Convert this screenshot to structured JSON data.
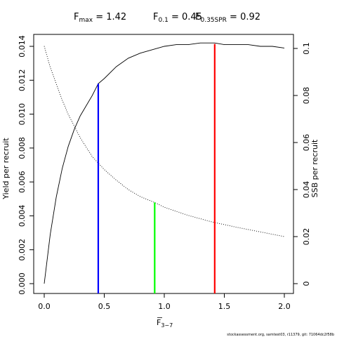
{
  "chart_data": {
    "type": "line",
    "title_parts": [
      {
        "main": "F",
        "sub": "max",
        "rest": " = 1.42"
      },
      {
        "main": "F",
        "sub": "0.1",
        "rest": " = 0.45"
      },
      {
        "main": "F",
        "sub": "0.35SPR",
        "rest": " = 0.92"
      }
    ],
    "xlabel": {
      "main": "F",
      "sub": "3−7"
    },
    "ylabel_left": "Yield per recruit",
    "ylabel_right": "SSB per recruit",
    "xlim": [
      0,
      2.0
    ],
    "ylim_left": [
      0,
      0.0145
    ],
    "ylim_right": [
      0,
      0.1036
    ],
    "x_ticks": [
      "0.0",
      "0.5",
      "1.0",
      "1.5",
      "2.0"
    ],
    "y_left_ticks": [
      "0.000",
      "0.002",
      "0.004",
      "0.006",
      "0.008",
      "0.010",
      "0.012",
      "0.014"
    ],
    "y_right_ticks": [
      "0",
      "0.02",
      "0.04",
      "0.06",
      "0.08",
      "0.1"
    ],
    "grid": false,
    "series": [
      {
        "axis": "left",
        "style": "solid",
        "color": "#000000",
        "x": [
          0,
          0.05,
          0.1,
          0.15,
          0.2,
          0.25,
          0.3,
          0.35,
          0.4,
          0.45,
          0.5,
          0.6,
          0.7,
          0.8,
          0.9,
          1.0,
          1.1,
          1.2,
          1.3,
          1.42,
          1.5,
          1.6,
          1.7,
          1.8,
          1.9,
          2.0
        ],
        "y": [
          0.0,
          0.0029,
          0.0051,
          0.0068,
          0.0081,
          0.0091,
          0.0099,
          0.0105,
          0.0111,
          0.0118,
          0.0121,
          0.0128,
          0.0133,
          0.0136,
          0.0138,
          0.014,
          0.0141,
          0.0141,
          0.0142,
          0.0142,
          0.0141,
          0.0141,
          0.0141,
          0.014,
          0.014,
          0.0139
        ]
      },
      {
        "axis": "right",
        "style": "dotted",
        "color": "#000000",
        "x": [
          0,
          0.05,
          0.1,
          0.15,
          0.2,
          0.3,
          0.4,
          0.5,
          0.6,
          0.7,
          0.8,
          0.92,
          1.0,
          1.2,
          1.4,
          1.6,
          1.8,
          2.0
        ],
        "y": [
          0.101,
          0.092,
          0.085,
          0.078,
          0.072,
          0.062,
          0.054,
          0.0485,
          0.044,
          0.04,
          0.037,
          0.0345,
          0.0325,
          0.029,
          0.0262,
          0.024,
          0.022,
          0.02
        ]
      }
    ],
    "reference_lines": [
      {
        "name": "F_max",
        "x": 1.42,
        "axis": "left",
        "y_top": 0.01414,
        "color": "#ff0000"
      },
      {
        "name": "F_0.1",
        "x": 0.45,
        "axis": "left",
        "y_top": 0.0118,
        "color": "#0000ff"
      },
      {
        "name": "F_0.35SPR",
        "x": 0.92,
        "axis": "right",
        "y_top": 0.0345,
        "color": "#00ff00"
      }
    ]
  },
  "footer": "stockassessment.org, samtest03, r11379, git: 71064dc2f58b"
}
